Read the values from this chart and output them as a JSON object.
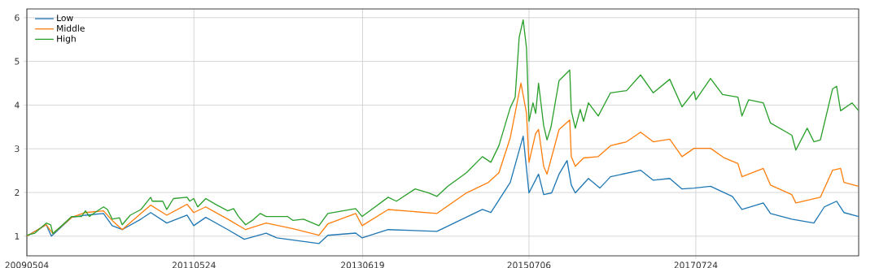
{
  "chart_data": {
    "type": "line",
    "xlim": [
      "2009-05-04",
      "2019-07-25"
    ],
    "ylim": [
      0.55,
      6.2
    ],
    "xticks": [
      {
        "value": "2009-05-04",
        "label": "20090504"
      },
      {
        "value": "2011-05-24",
        "label": "20110524"
      },
      {
        "value": "2013-06-19",
        "label": "20130619"
      },
      {
        "value": "2015-07-06",
        "label": "20150706"
      },
      {
        "value": "2017-07-24",
        "label": "20170724"
      }
    ],
    "yticks": [
      1,
      2,
      3,
      4,
      5,
      6
    ],
    "grid": true,
    "legend": "top left",
    "line_style": "solid",
    "marker": "none",
    "series": [
      {
        "name": "Low",
        "color": "#1f77b4",
        "x": [
          "2009-05-04",
          "2009-07-30",
          "2009-08-22",
          "2009-11-21",
          "2010-01-22",
          "2010-04-13",
          "2010-05-22",
          "2010-07-06",
          "2010-09-28",
          "2010-11-11",
          "2011-01-22",
          "2011-04-23",
          "2011-05-23",
          "2011-07-16",
          "2011-10-23",
          "2012-01-05",
          "2012-04-12",
          "2012-05-30",
          "2012-12-05",
          "2013-01-14",
          "2013-05-19",
          "2013-06-17",
          "2013-10-12",
          "2014-05-19",
          "2014-12-09",
          "2015-01-16",
          "2015-04-13",
          "2015-06-10",
          "2015-07-06",
          "2015-08-18",
          "2015-09-10",
          "2015-10-16",
          "2015-11-18",
          "2015-12-24",
          "2016-01-12",
          "2016-01-30",
          "2016-03-29",
          "2016-05-19",
          "2016-07-06",
          "2016-11-18",
          "2017-01-14",
          "2017-03-29",
          "2017-05-23",
          "2017-07-16",
          "2017-09-28",
          "2018-01-04",
          "2018-02-16",
          "2018-05-23",
          "2018-06-24",
          "2018-09-28",
          "2019-01-05",
          "2019-02-21",
          "2019-04-17",
          "2019-05-20",
          "2019-07-25"
        ],
        "values": [
          1.0,
          1.26,
          1.0,
          1.43,
          1.48,
          1.52,
          1.24,
          1.15,
          1.39,
          1.54,
          1.3,
          1.48,
          1.24,
          1.43,
          1.15,
          0.93,
          1.07,
          0.96,
          0.83,
          1.02,
          1.07,
          0.96,
          1.15,
          1.11,
          1.61,
          1.54,
          2.23,
          3.29,
          1.99,
          2.42,
          1.95,
          1.99,
          2.42,
          2.73,
          2.17,
          1.99,
          2.32,
          2.1,
          2.36,
          2.51,
          2.28,
          2.32,
          2.08,
          2.1,
          2.14,
          1.91,
          1.61,
          1.76,
          1.52,
          1.39,
          1.3,
          1.67,
          1.8,
          1.54,
          1.45
        ]
      },
      {
        "name": "Middle",
        "color": "#ff7f0e",
        "x": [
          "2009-05-04",
          "2009-07-30",
          "2009-08-29",
          "2009-11-21",
          "2010-01-22",
          "2010-04-13",
          "2010-05-22",
          "2010-07-06",
          "2010-09-28",
          "2010-11-11",
          "2011-01-22",
          "2011-04-23",
          "2011-05-23",
          "2011-07-16",
          "2011-10-23",
          "2012-01-11",
          "2012-04-12",
          "2012-08-11",
          "2012-12-05",
          "2013-01-14",
          "2013-05-19",
          "2013-06-17",
          "2013-10-12",
          "2014-05-19",
          "2014-09-28",
          "2015-01-05",
          "2015-02-21",
          "2015-04-13",
          "2015-05-31",
          "2015-06-25",
          "2015-07-06",
          "2015-08-05",
          "2015-08-18",
          "2015-09-10",
          "2015-09-25",
          "2015-11-18",
          "2016-01-05",
          "2016-01-12",
          "2016-01-30",
          "2016-03-07",
          "2016-05-12",
          "2016-07-06",
          "2016-09-16",
          "2016-11-18",
          "2017-01-14",
          "2017-03-29",
          "2017-05-23",
          "2017-07-16",
          "2017-09-28",
          "2017-11-29",
          "2018-01-29",
          "2018-02-16",
          "2018-05-23",
          "2018-06-24",
          "2018-09-28",
          "2018-10-16",
          "2019-02-03",
          "2019-03-30",
          "2019-05-05",
          "2019-05-20",
          "2019-07-25"
        ],
        "values": [
          1.0,
          1.26,
          1.06,
          1.43,
          1.54,
          1.58,
          1.36,
          1.15,
          1.52,
          1.71,
          1.48,
          1.73,
          1.54,
          1.67,
          1.39,
          1.15,
          1.3,
          1.17,
          1.02,
          1.28,
          1.52,
          1.24,
          1.61,
          1.52,
          1.99,
          2.23,
          2.45,
          3.25,
          4.5,
          3.81,
          2.69,
          3.35,
          3.44,
          2.6,
          2.42,
          3.44,
          3.66,
          2.82,
          2.6,
          2.79,
          2.82,
          3.07,
          3.16,
          3.38,
          3.16,
          3.22,
          2.82,
          3.01,
          3.01,
          2.79,
          2.66,
          2.36,
          2.55,
          2.17,
          1.95,
          1.76,
          1.89,
          2.51,
          2.55,
          2.23,
          2.14
        ]
      },
      {
        "name": "High",
        "color": "#2ca02c",
        "x": [
          "2009-05-04",
          "2009-06-09",
          "2009-07-30",
          "2009-08-19",
          "2009-08-29",
          "2009-10-12",
          "2009-11-21",
          "2010-01-04",
          "2010-01-22",
          "2010-02-09",
          "2010-02-28",
          "2010-04-13",
          "2010-05-01",
          "2010-05-22",
          "2010-06-24",
          "2010-07-06",
          "2010-08-11",
          "2010-09-28",
          "2010-11-11",
          "2010-11-18",
          "2011-01-04",
          "2011-01-22",
          "2011-02-21",
          "2011-04-23",
          "2011-05-05",
          "2011-05-23",
          "2011-06-10",
          "2011-07-16",
          "2011-09-05",
          "2011-10-23",
          "2011-11-18",
          "2011-12-10",
          "2012-01-11",
          "2012-02-10",
          "2012-03-17",
          "2012-04-12",
          "2012-07-17",
          "2012-08-11",
          "2012-09-27",
          "2012-12-05",
          "2013-01-14",
          "2013-05-19",
          "2013-06-17",
          "2013-10-12",
          "2013-11-18",
          "2014-02-10",
          "2014-04-13",
          "2014-05-19",
          "2014-07-06",
          "2014-09-28",
          "2014-12-09",
          "2015-01-16",
          "2015-02-21",
          "2015-04-13",
          "2015-05-05",
          "2015-05-23",
          "2015-06-10",
          "2015-06-25",
          "2015-07-06",
          "2015-07-24",
          "2015-08-05",
          "2015-08-18",
          "2015-09-10",
          "2015-09-25",
          "2015-10-13",
          "2015-11-18",
          "2016-01-05",
          "2016-01-12",
          "2016-01-30",
          "2016-02-21",
          "2016-03-07",
          "2016-03-29",
          "2016-05-12",
          "2016-07-06",
          "2016-09-16",
          "2016-11-18",
          "2017-01-14",
          "2017-03-29",
          "2017-05-23",
          "2017-07-16",
          "2017-07-24",
          "2017-09-28",
          "2017-11-21",
          "2018-01-29",
          "2018-02-16",
          "2018-03-18",
          "2018-05-23",
          "2018-06-24",
          "2018-09-28",
          "2018-10-16",
          "2018-12-06",
          "2019-01-05",
          "2019-02-03",
          "2019-03-30",
          "2019-04-17",
          "2019-05-05",
          "2019-06-25",
          "2019-07-25"
        ],
        "values": [
          1.02,
          1.07,
          1.3,
          1.26,
          1.06,
          1.26,
          1.45,
          1.45,
          1.58,
          1.45,
          1.52,
          1.67,
          1.61,
          1.39,
          1.42,
          1.26,
          1.48,
          1.61,
          1.89,
          1.8,
          1.8,
          1.61,
          1.86,
          1.89,
          1.8,
          1.86,
          1.67,
          1.86,
          1.71,
          1.58,
          1.63,
          1.45,
          1.26,
          1.36,
          1.52,
          1.45,
          1.45,
          1.36,
          1.39,
          1.24,
          1.52,
          1.63,
          1.45,
          1.89,
          1.8,
          2.08,
          1.99,
          1.91,
          2.14,
          2.45,
          2.82,
          2.69,
          3.07,
          3.94,
          4.18,
          5.55,
          5.95,
          5.3,
          3.63,
          4.05,
          3.81,
          4.5,
          3.53,
          3.2,
          3.5,
          4.56,
          4.8,
          3.87,
          3.47,
          3.9,
          3.63,
          4.05,
          3.75,
          4.28,
          4.33,
          4.69,
          4.28,
          4.59,
          3.96,
          4.31,
          4.12,
          4.61,
          4.24,
          4.18,
          3.75,
          4.12,
          4.05,
          3.59,
          3.31,
          2.97,
          3.47,
          3.16,
          3.2,
          4.37,
          4.43,
          3.87,
          4.05,
          3.87
        ]
      }
    ]
  }
}
